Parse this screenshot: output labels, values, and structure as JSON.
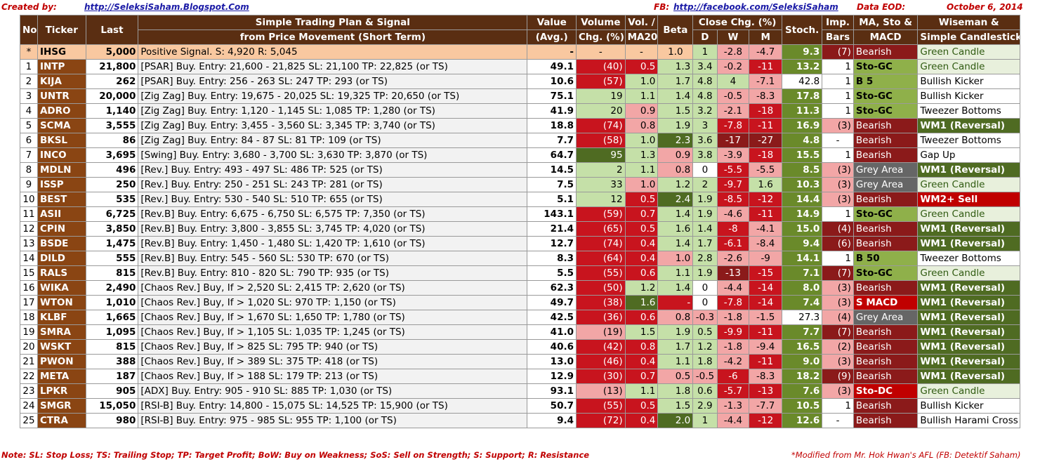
{
  "header": {
    "created_by_label": "Created by:",
    "created_by_url": "http://SeleksiSaham.Blogspot.Com",
    "fb_label": "FB:",
    "fb_url": "http://facebook.com/SeleksiSaham",
    "data_label": "Data EOD:",
    "date": "October 6, 2014"
  },
  "columns": {
    "no": "No",
    "ticker": "Ticker",
    "last": "Last",
    "plan_line1": "Simple Trading Plan & Signal",
    "plan_line2": "from Price Movement (Short Term)",
    "value_line1": "Value",
    "value_line2": "(Avg.)",
    "volume_line1": "Volume",
    "volume_line2": "Chg. (%)",
    "vol_line1": "Vol. /",
    "vol_line2": "MA20",
    "beta": "Beta",
    "close_chg": "Close Chg. (%)",
    "d": "D",
    "w": "W",
    "m": "M",
    "stoch": "Stoch.",
    "imp_line1": "Imp.",
    "imp_line2": "Bars",
    "ma_line1": "MA, Sto &",
    "ma_line2": "MACD",
    "ws_line1": "Wiseman  &",
    "ws_line2": "Simple Candlestick"
  },
  "rows": [
    {
      "no": "*",
      "ticker": "IHSG",
      "last": "5,000",
      "plan": "Positive Signal.  S:   4,920  R:  5,045",
      "value": "-",
      "volume": "-",
      "vol_ma": "-",
      "beta": "1.0",
      "d": "1",
      "w": "-2.8",
      "m": "-4.7",
      "stoch": "9.3",
      "imp": "(7)",
      "ma": "Bearish",
      "ws": "Green Candle",
      "cls": {
        "volume": "ihsg",
        "vol_ma": "ihsg",
        "beta": "ihsg",
        "d": "pos-lg",
        "w": "neg-pink",
        "m": "neg-pink",
        "stoch": "st-g",
        "imp": "ma-bear",
        "ma": "ma-bear",
        "ws": "ws-green"
      }
    },
    {
      "no": "1",
      "ticker": "INTP",
      "last": "21,800",
      "plan": "[PSAR] Buy.  Entry: 21,600 - 21,825  SL: 21,100 TP: 22,825 (or TS)",
      "value": "49.1",
      "volume": "(40)",
      "vol_ma": "0.5",
      "beta": "1.3",
      "d": "3.4",
      "w": "-0.2",
      "m": "-11",
      "stoch": "13.2",
      "imp": "1",
      "ma": "Sto-GC",
      "ws": "Green Candle",
      "cls": {
        "volume": "neg-red",
        "vol_ma": "neg-red",
        "beta": "pos-lg",
        "d": "pos-lg",
        "w": "neg-pink",
        "m": "neg-red",
        "stoch": "st-g",
        "imp": "imp-w",
        "ma": "ma-gc",
        "ws": "ws-green"
      }
    },
    {
      "no": "2",
      "ticker": "KIJA",
      "last": "262",
      "plan": "[PSAR] Buy.  Entry:   256 -   263  SL:   247  TP:   293  (or TS)",
      "value": "10.6",
      "volume": "(57)",
      "vol_ma": "1.0",
      "beta": "1.7",
      "d": "4.8",
      "w": "4",
      "m": "-7.1",
      "stoch": "42.8",
      "imp": "1",
      "ma": "B 5",
      "ws": "Bullish Kicker",
      "cls": {
        "volume": "neg-red",
        "vol_ma": "pos-lg",
        "beta": "pos-lg",
        "d": "pos-lg",
        "w": "pos-lg",
        "m": "neg-pink",
        "stoch": "st-w",
        "imp": "imp-w",
        "ma": "ma-gc",
        "ws": "ws-plain"
      }
    },
    {
      "no": "3",
      "ticker": "UNTR",
      "last": "20,000",
      "plan": "[Zig Zag] Buy.  Entry: 19,675 - 20,025  SL: 19,325 TP: 20,650 (or TS)",
      "value": "75.1",
      "volume": "19",
      "vol_ma": "1.1",
      "beta": "1.4",
      "d": "4.8",
      "w": "-0.5",
      "m": "-8.3",
      "stoch": "17.8",
      "imp": "1",
      "ma": "Sto-GC",
      "ws": "Bullish Kicker",
      "cls": {
        "volume": "pos-lg",
        "vol_ma": "pos-lg",
        "beta": "pos-lg",
        "d": "pos-lg",
        "w": "neg-pink",
        "m": "neg-pink",
        "stoch": "st-g",
        "imp": "imp-w",
        "ma": "ma-gc",
        "ws": "ws-plain"
      }
    },
    {
      "no": "4",
      "ticker": "ADRO",
      "last": "1,140",
      "plan": "[Zig Zag] Buy.  Entry:  1,120 -  1,145  SL:  1,085  TP:  1,280  (or TS)",
      "value": "41.9",
      "volume": "20",
      "vol_ma": "0.9",
      "beta": "1.5",
      "d": "3.2",
      "w": "-2.1",
      "m": "-18",
      "stoch": "11.3",
      "imp": "1",
      "ma": "Sto-GC",
      "ws": "Tweezer Bottoms",
      "cls": {
        "volume": "pos-lg",
        "vol_ma": "neg-pink",
        "beta": "pos-lg",
        "d": "pos-lg",
        "w": "neg-pink",
        "m": "neg-red",
        "stoch": "st-g",
        "imp": "imp-w",
        "ma": "ma-gc",
        "ws": "ws-plain"
      }
    },
    {
      "no": "5",
      "ticker": "SCMA",
      "last": "3,555",
      "plan": "[Zig Zag] Buy.  Entry:  3,455 -  3,560  SL:  3,345  TP:  3,740  (or TS)",
      "value": "18.8",
      "volume": "(74)",
      "vol_ma": "0.8",
      "beta": "1.9",
      "d": "3",
      "w": "-7.8",
      "m": "-11",
      "stoch": "16.9",
      "imp": "(3)",
      "ma": "Bearish",
      "ws": "WM1 (Reversal)",
      "cls": {
        "volume": "neg-red",
        "vol_ma": "neg-pink",
        "beta": "pos-lg",
        "d": "pos-lg",
        "w": "neg-red",
        "m": "neg-red",
        "stoch": "st-g",
        "imp": "imp-p",
        "ma": "ma-bear",
        "ws": "ws-wm1"
      }
    },
    {
      "no": "6",
      "ticker": "BKSL",
      "last": "86",
      "plan": "[Zig Zag] Buy.  Entry:    84 -    87  SL:    81  TP:   109  (or TS)",
      "value": "7.7",
      "volume": "(58)",
      "vol_ma": "1.0",
      "beta": "2.3",
      "d": "3.6",
      "w": "-17",
      "m": "-27",
      "stoch": "4.8",
      "imp": "-",
      "ma": "Bearish",
      "ws": "Tweezer Bottoms",
      "cls": {
        "volume": "neg-red",
        "vol_ma": "pos-lg",
        "beta": "pos-g",
        "d": "pos-lg",
        "w": "neg-dred",
        "m": "neg-dred",
        "stoch": "st-g",
        "imp": "imp-c",
        "ma": "ma-bear",
        "ws": "ws-plain"
      }
    },
    {
      "no": "7",
      "ticker": "INCO",
      "last": "3,695",
      "plan": "[Swing] Buy.  Entry:  3,680 -  3,700  SL:  3,630  TP:  3,870  (or TS)",
      "value": "64.7",
      "volume": "95",
      "vol_ma": "1.3",
      "beta": "0.9",
      "d": "3.8",
      "w": "-3.9",
      "m": "-18",
      "stoch": "15.5",
      "imp": "1",
      "ma": "Bearish",
      "ws": "Gap Up",
      "cls": {
        "volume": "pos-g",
        "vol_ma": "pos-lg",
        "beta": "neg-pink",
        "d": "pos-lg",
        "w": "neg-pink",
        "m": "neg-red",
        "stoch": "st-g",
        "imp": "imp-w",
        "ma": "ma-bear",
        "ws": "ws-plain"
      }
    },
    {
      "no": "8",
      "ticker": "MDLN",
      "last": "496",
      "plan": "[Rev.] Buy.  Entry:   493 -   497  SL:   486  TP:   525  (or TS)",
      "value": "14.5",
      "volume": "2",
      "vol_ma": "1.1",
      "beta": "0.8",
      "d": "0",
      "w": "-5.5",
      "m": "-5.5",
      "stoch": "8.5",
      "imp": "(3)",
      "ma": "Grey Area",
      "ws": "WM1 (Reversal)",
      "cls": {
        "volume": "pos-lg",
        "vol_ma": "pos-lg",
        "beta": "neg-pink",
        "d": "plain",
        "w": "neg-red",
        "m": "neg-pink",
        "stoch": "st-g",
        "imp": "imp-p",
        "ma": "ma-grey",
        "ws": "ws-wm1"
      }
    },
    {
      "no": "9",
      "ticker": "ISSP",
      "last": "250",
      "plan": "[Rev.] Buy.  Entry:   250 -   251  SL:   243  TP:   281  (or TS)",
      "value": "7.5",
      "volume": "33",
      "vol_ma": "1.0",
      "beta": "1.2",
      "d": "2",
      "w": "-9.7",
      "m": "1.6",
      "stoch": "10.3",
      "imp": "(3)",
      "ma": "Grey Area",
      "ws": "Green Candle",
      "cls": {
        "volume": "pos-lg",
        "vol_ma": "neg-pink",
        "beta": "pos-lg",
        "d": "pos-lg",
        "w": "neg-red",
        "m": "pos-lg",
        "stoch": "st-g",
        "imp": "imp-p",
        "ma": "ma-grey",
        "ws": "ws-green"
      }
    },
    {
      "no": "10",
      "ticker": "BEST",
      "last": "535",
      "plan": "[Rev.] Buy.  Entry:   530 -   540  SL:   510  TP:   655  (or TS)",
      "value": "5.1",
      "volume": "12",
      "vol_ma": "0.5",
      "beta": "2.4",
      "d": "1.9",
      "w": "-8.5",
      "m": "-12",
      "stoch": "14.4",
      "imp": "(3)",
      "ma": "Bearish",
      "ws": "WM2+ Sell",
      "cls": {
        "volume": "pos-lg",
        "vol_ma": "neg-red",
        "beta": "pos-g",
        "d": "pos-lg",
        "w": "neg-red",
        "m": "neg-red",
        "stoch": "st-g",
        "imp": "imp-p",
        "ma": "ma-bear",
        "ws": "ws-wm2"
      }
    },
    {
      "no": "11",
      "ticker": "ASII",
      "last": "6,725",
      "plan": "[Rev.B] Buy.  Entry:  6,675 -  6,750  SL:  6,575  TP:  7,350  (or TS)",
      "value": "143.1",
      "volume": "(59)",
      "vol_ma": "0.7",
      "beta": "1.4",
      "d": "1.9",
      "w": "-4.6",
      "m": "-11",
      "stoch": "14.9",
      "imp": "1",
      "ma": "Sto-GC",
      "ws": "Green Candle",
      "cls": {
        "volume": "neg-red",
        "vol_ma": "neg-red",
        "beta": "pos-lg",
        "d": "pos-lg",
        "w": "neg-pink",
        "m": "neg-red",
        "stoch": "st-g",
        "imp": "imp-w",
        "ma": "ma-gc",
        "ws": "ws-green"
      }
    },
    {
      "no": "12",
      "ticker": "CPIN",
      "last": "3,850",
      "plan": "[Rev.B] Buy.  Entry:  3,800 -  3,855  SL:  3,745  TP:  4,020  (or TS)",
      "value": "21.4",
      "volume": "(65)",
      "vol_ma": "0.5",
      "beta": "1.6",
      "d": "1.4",
      "w": "-8",
      "m": "-4.1",
      "stoch": "15.0",
      "imp": "(4)",
      "ma": "Bearish",
      "ws": "WM1 (Reversal)",
      "cls": {
        "volume": "neg-red",
        "vol_ma": "neg-red",
        "beta": "pos-lg",
        "d": "pos-lg",
        "w": "neg-red",
        "m": "neg-pink",
        "stoch": "st-g",
        "imp": "ma-bear",
        "ma": "ma-bear",
        "ws": "ws-wm1"
      }
    },
    {
      "no": "13",
      "ticker": "BSDE",
      "last": "1,475",
      "plan": "[Rev.B] Buy.  Entry:  1,450 -  1,480  SL:  1,420  TP:  1,610  (or TS)",
      "value": "12.7",
      "volume": "(74)",
      "vol_ma": "0.4",
      "beta": "1.4",
      "d": "1.7",
      "w": "-6.1",
      "m": "-8.4",
      "stoch": "9.4",
      "imp": "(6)",
      "ma": "Bearish",
      "ws": "WM1 (Reversal)",
      "cls": {
        "volume": "neg-red",
        "vol_ma": "neg-red",
        "beta": "pos-lg",
        "d": "pos-lg",
        "w": "neg-red",
        "m": "neg-pink",
        "stoch": "st-g",
        "imp": "ma-bear",
        "ma": "ma-bear",
        "ws": "ws-wm1"
      }
    },
    {
      "no": "14",
      "ticker": "DILD",
      "last": "555",
      "plan": "[Rev.B] Buy.  Entry:   545 -   560  SL:   530  TP:   670  (or TS)",
      "value": "8.3",
      "volume": "(64)",
      "vol_ma": "0.4",
      "beta": "1.0",
      "d": "2.8",
      "w": "-2.6",
      "m": "-9",
      "stoch": "14.1",
      "imp": "1",
      "ma": "B 50",
      "ws": "Tweezer Bottoms",
      "cls": {
        "volume": "neg-red",
        "vol_ma": "neg-red",
        "beta": "neg-pink",
        "d": "pos-lg",
        "w": "neg-pink",
        "m": "neg-pink",
        "stoch": "st-g",
        "imp": "imp-w",
        "ma": "ma-gc",
        "ws": "ws-plain"
      }
    },
    {
      "no": "15",
      "ticker": "RALS",
      "last": "815",
      "plan": "[Rev.B] Buy.  Entry:   810 -   820  SL:   790  TP:   935  (or TS)",
      "value": "5.5",
      "volume": "(55)",
      "vol_ma": "0.6",
      "beta": "1.1",
      "d": "1.9",
      "w": "-13",
      "m": "-15",
      "stoch": "7.1",
      "imp": "(7)",
      "ma": "Sto-GC",
      "ws": "Green Candle",
      "cls": {
        "volume": "neg-red",
        "vol_ma": "neg-red",
        "beta": "pos-lg",
        "d": "pos-lg",
        "w": "neg-dred",
        "m": "neg-red",
        "stoch": "st-g",
        "imp": "ma-bear",
        "ma": "ma-gc",
        "ws": "ws-green"
      }
    },
    {
      "no": "16",
      "ticker": "WIKA",
      "last": "2,490",
      "plan": "[Chaos Rev.] Buy, If >  2,520  SL:  2,415  TP:  2,620  (or TS)",
      "value": "62.3",
      "volume": "(50)",
      "vol_ma": "1.2",
      "beta": "1.4",
      "d": "0",
      "w": "-4.4",
      "m": "-14",
      "stoch": "8.0",
      "imp": "(3)",
      "ma": "Bearish",
      "ws": "WM1 (Reversal)",
      "cls": {
        "volume": "neg-red",
        "vol_ma": "pos-lg",
        "beta": "pos-lg",
        "d": "plain",
        "w": "neg-pink",
        "m": "neg-red",
        "stoch": "st-g",
        "imp": "imp-p",
        "ma": "ma-bear",
        "ws": "ws-wm1"
      }
    },
    {
      "no": "17",
      "ticker": "WTON",
      "last": "1,010",
      "plan": "[Chaos Rev.] Buy, If >  1,020  SL:    970  TP:  1,150  (or TS)",
      "value": "49.7",
      "volume": "(38)",
      "vol_ma": "1.6",
      "beta": "-",
      "d": "0",
      "w": "-7.8",
      "m": "-14",
      "stoch": "7.4",
      "imp": "(3)",
      "ma": "S MACD",
      "ws": "WM1 (Reversal)",
      "cls": {
        "volume": "neg-red",
        "vol_ma": "pos-g",
        "beta": "neg-red",
        "d": "plain",
        "w": "neg-red",
        "m": "neg-red",
        "stoch": "st-g",
        "imp": "imp-p",
        "ma": "ma-smacd",
        "ws": "ws-wm1"
      }
    },
    {
      "no": "18",
      "ticker": "KLBF",
      "last": "1,665",
      "plan": "[Chaos Rev.] Buy, If >  1,670  SL:  1,650  TP:  1,780  (or TS)",
      "value": "42.5",
      "volume": "(36)",
      "vol_ma": "0.6",
      "beta": "0.8",
      "d": "-0.3",
      "w": "-1.8",
      "m": "-1.5",
      "stoch": "27.3",
      "imp": "(4)",
      "ma": "Grey Area",
      "ws": "WM1 (Reversal)",
      "cls": {
        "volume": "neg-red",
        "vol_ma": "neg-red",
        "beta": "neg-pink",
        "d": "neg-pink",
        "w": "neg-pink",
        "m": "neg-pink",
        "stoch": "st-w",
        "imp": "imp-p",
        "ma": "ma-grey",
        "ws": "ws-wm1"
      }
    },
    {
      "no": "19",
      "ticker": "SMRA",
      "last": "1,095",
      "plan": "[Chaos Rev.] Buy, If >  1,105  SL:  1,035  TP:  1,245  (or TS)",
      "value": "41.0",
      "volume": "(19)",
      "vol_ma": "1.5",
      "beta": "1.9",
      "d": "0.5",
      "w": "-9.9",
      "m": "-11",
      "stoch": "7.7",
      "imp": "(7)",
      "ma": "Bearish",
      "ws": "WM1 (Reversal)",
      "cls": {
        "volume": "neg-pink",
        "vol_ma": "pos-lg",
        "beta": "pos-lg",
        "d": "pos-lg",
        "w": "neg-red",
        "m": "neg-red",
        "stoch": "st-g",
        "imp": "ma-bear",
        "ma": "ma-bear",
        "ws": "ws-wm1"
      }
    },
    {
      "no": "20",
      "ticker": "WSKT",
      "last": "815",
      "plan": "[Chaos Rev.] Buy, If >   825  SL:   795  TP:   940  (or TS)",
      "value": "40.6",
      "volume": "(42)",
      "vol_ma": "0.8",
      "beta": "1.7",
      "d": "1.2",
      "w": "-1.8",
      "m": "-9.4",
      "stoch": "16.5",
      "imp": "(2)",
      "ma": "Bearish",
      "ws": "WM1 (Reversal)",
      "cls": {
        "volume": "neg-red",
        "vol_ma": "neg-red",
        "beta": "pos-lg",
        "d": "pos-lg",
        "w": "neg-pink",
        "m": "neg-pink",
        "stoch": "st-g",
        "imp": "imp-p",
        "ma": "ma-bear",
        "ws": "ws-wm1"
      }
    },
    {
      "no": "21",
      "ticker": "PWON",
      "last": "388",
      "plan": "[Chaos Rev.] Buy, If >   389  SL:   375  TP:   418  (or TS)",
      "value": "13.0",
      "volume": "(46)",
      "vol_ma": "0.4",
      "beta": "1.1",
      "d": "1.8",
      "w": "-4.2",
      "m": "-11",
      "stoch": "9.0",
      "imp": "(3)",
      "ma": "Bearish",
      "ws": "WM1 (Reversal)",
      "cls": {
        "volume": "neg-red",
        "vol_ma": "neg-red",
        "beta": "pos-lg",
        "d": "pos-lg",
        "w": "neg-pink",
        "m": "neg-red",
        "stoch": "st-g",
        "imp": "imp-p",
        "ma": "ma-bear",
        "ws": "ws-wm1"
      }
    },
    {
      "no": "22",
      "ticker": "META",
      "last": "187",
      "plan": "[Chaos Rev.] Buy, If >   188  SL:   179  TP:   213  (or TS)",
      "value": "12.9",
      "volume": "(30)",
      "vol_ma": "0.7",
      "beta": "0.5",
      "d": "-0.5",
      "w": "-6",
      "m": "-8.3",
      "stoch": "18.2",
      "imp": "(9)",
      "ma": "Bearish",
      "ws": "WM1 (Reversal)",
      "cls": {
        "volume": "neg-red",
        "vol_ma": "neg-red",
        "beta": "neg-pink",
        "d": "neg-pink",
        "w": "neg-red",
        "m": "neg-pink",
        "stoch": "st-g",
        "imp": "ma-bear",
        "ma": "ma-bear",
        "ws": "ws-wm1"
      }
    },
    {
      "no": "23",
      "ticker": "LPKR",
      "last": "905",
      "plan": "[ADX] Buy.  Entry:   905 -   910  SL:   885  TP:  1,030  (or TS)",
      "value": "93.1",
      "volume": "(13)",
      "vol_ma": "1.1",
      "beta": "1.8",
      "d": "0.6",
      "w": "-5.7",
      "m": "-13",
      "stoch": "7.6",
      "imp": "(3)",
      "ma": "Sto-DC",
      "ws": "Green Candle",
      "cls": {
        "volume": "neg-pink",
        "vol_ma": "pos-lg",
        "beta": "pos-lg",
        "d": "pos-lg",
        "w": "neg-red",
        "m": "neg-red",
        "stoch": "st-g",
        "imp": "imp-p",
        "ma": "ma-smacd",
        "ws": "ws-green"
      }
    },
    {
      "no": "24",
      "ticker": "SMGR",
      "last": "15,050",
      "plan": "[RSI-B] Buy.  Entry: 14,800 - 15,075  SL: 14,525 TP: 15,900 (or TS)",
      "value": "50.7",
      "volume": "(55)",
      "vol_ma": "0.5",
      "beta": "1.5",
      "d": "2.9",
      "w": "-1.3",
      "m": "-7.7",
      "stoch": "10.5",
      "imp": "1",
      "ma": "Bearish",
      "ws": "Bullish Kicker",
      "cls": {
        "volume": "neg-red",
        "vol_ma": "neg-red",
        "beta": "pos-lg",
        "d": "pos-lg",
        "w": "neg-pink",
        "m": "neg-pink",
        "stoch": "st-g",
        "imp": "imp-w",
        "ma": "ma-bear",
        "ws": "ws-plain"
      }
    },
    {
      "no": "25",
      "ticker": "CTRA",
      "last": "980",
      "plan": "[RSI-B] Buy.  Entry:   975 -   985  SL:   955  TP:  1,100  (or TS)",
      "value": "9.4",
      "volume": "(72)",
      "vol_ma": "0.4",
      "beta": "2.0",
      "d": "1",
      "w": "-4.4",
      "m": "-12",
      "stoch": "12.6",
      "imp": "-",
      "ma": "Bearish",
      "ws": "Bullish Harami Cross",
      "cls": {
        "volume": "neg-red",
        "vol_ma": "neg-red",
        "beta": "pos-g",
        "d": "pos-lg",
        "w": "neg-pink",
        "m": "neg-red",
        "stoch": "st-g",
        "imp": "imp-c",
        "ma": "ma-bear",
        "ws": "ws-plain"
      }
    }
  ],
  "footer": {
    "note": "Note:  SL: Stop Loss; TS: Trailing Stop; TP: Target Profit; BoW: Buy on Weakness; SoS: Sell on Strength; S: Support; R: Resistance",
    "credit": "*Modified from Mr. Hok Hwan's AFL (FB: Detektif Saham)"
  }
}
